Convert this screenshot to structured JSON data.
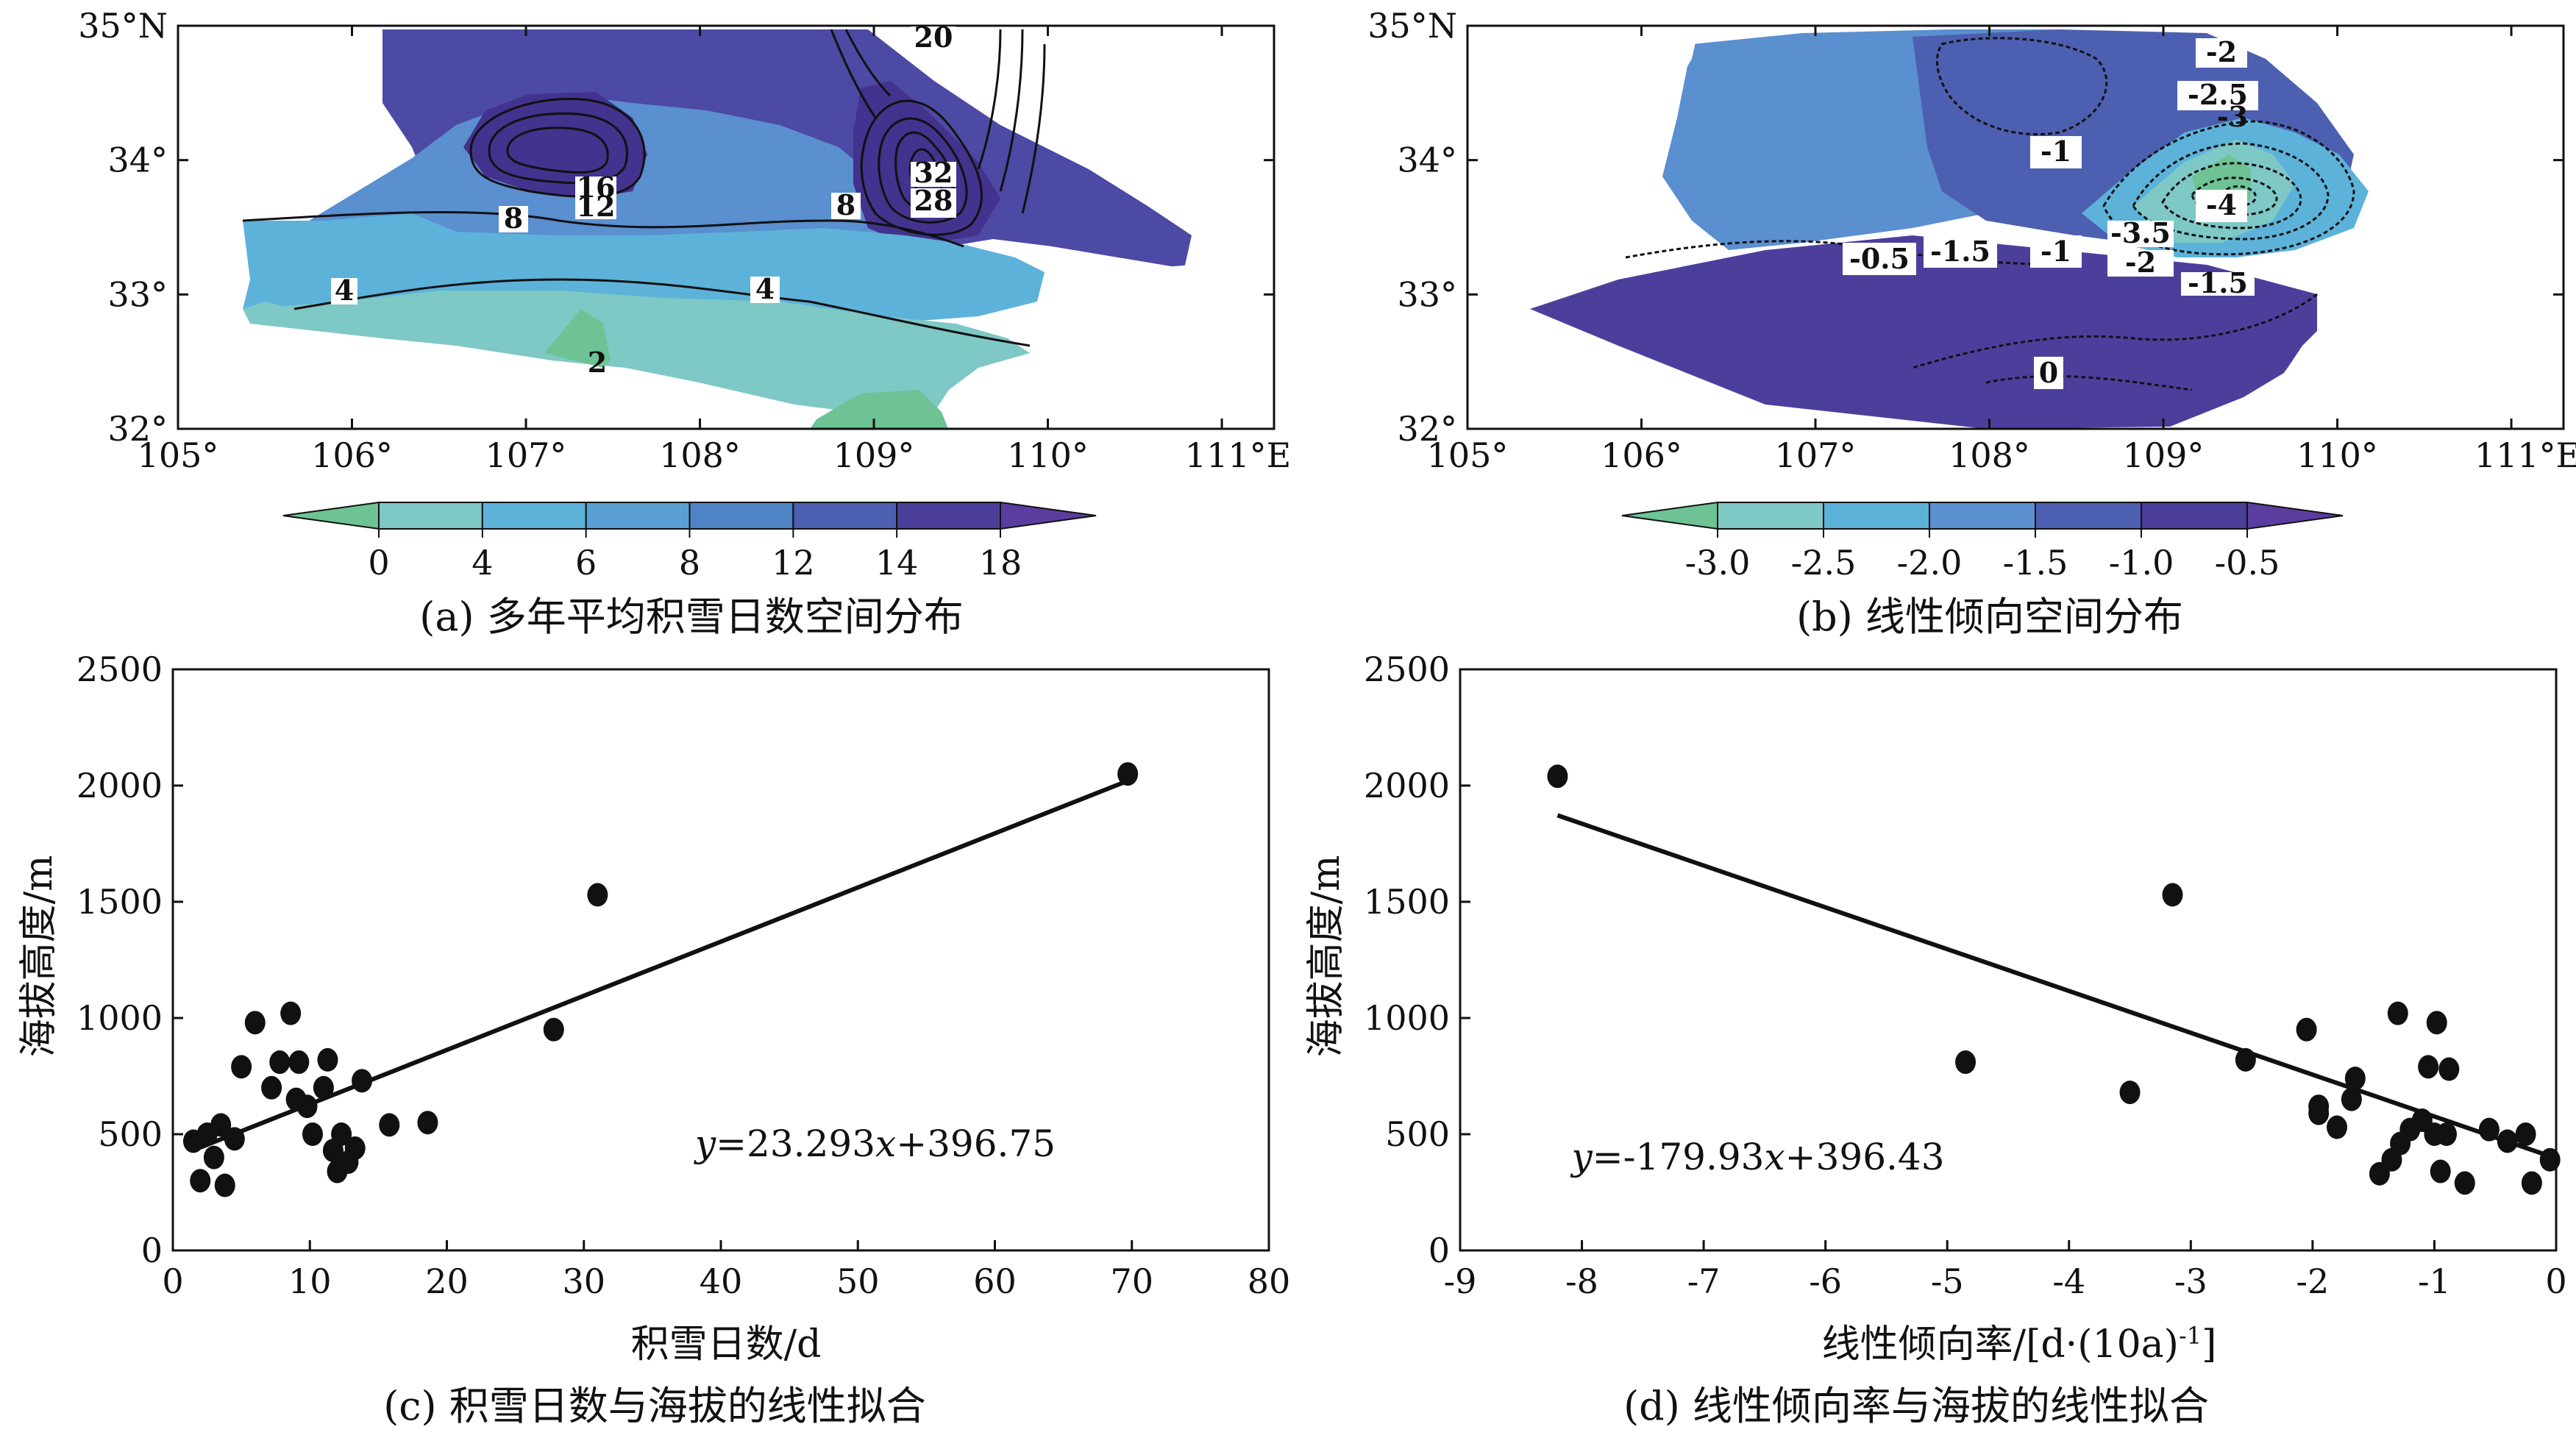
{
  "chart_data": [
    {
      "id": "a",
      "type": "heatmap",
      "caption": "(a) 多年平均积雪日数空间分布",
      "lon_ticks": [
        "105°",
        "106°",
        "107°",
        "108°",
        "109°",
        "110°",
        "111°E"
      ],
      "lat_ticks": [
        "35°N",
        "34°",
        "33°",
        "32°"
      ],
      "lon_range": [
        105,
        111.3
      ],
      "lat_range": [
        32,
        35
      ],
      "colorbar": {
        "labels": [
          "0",
          "4",
          "6",
          "8",
          "12",
          "14",
          "18"
        ],
        "colors": [
          "#6dc394",
          "#7ec8c6",
          "#5db2da",
          "#5a9fd4",
          "#4e84c6",
          "#4d5fb0",
          "#4b3e98",
          "#5b3d9f"
        ]
      },
      "contour_labels": [
        "20",
        "16",
        "12",
        "32",
        "28",
        "8",
        "8",
        "4",
        "4",
        "2"
      ]
    },
    {
      "id": "b",
      "type": "heatmap",
      "caption": "(b) 线性倾向空间分布",
      "lon_ticks": [
        "105°",
        "106°",
        "107°",
        "108°",
        "109°",
        "110°",
        "111°E"
      ],
      "lat_ticks": [
        "35°N",
        "34°",
        "33°",
        "32°"
      ],
      "lon_range": [
        105,
        111.3
      ],
      "lat_range": [
        32,
        35
      ],
      "colorbar": {
        "labels": [
          "-3.0",
          "-2.5",
          "-2.0",
          "-1.5",
          "-1.0",
          "-0.5"
        ],
        "colors": [
          "#6dc394",
          "#7ec8c6",
          "#5db2da",
          "#5a8fd0",
          "#4d5fb0",
          "#4b3e98",
          "#5b3d9f"
        ]
      },
      "contour_labels": [
        "-2",
        "-2.5",
        "-3",
        "-1",
        "-4",
        "-3.5",
        "-0.5",
        "-1.5",
        "-1",
        "-2",
        "-1.5",
        "0"
      ]
    },
    {
      "id": "c",
      "type": "scatter",
      "caption": "(c) 积雪日数与海拔的线性拟合",
      "xlabel": "积雪日数/d",
      "ylabel": "海拔高度/m",
      "xlim": [
        0,
        80
      ],
      "ylim": [
        0,
        2500
      ],
      "xticks": [
        0,
        10,
        20,
        30,
        40,
        50,
        60,
        70,
        80
      ],
      "yticks": [
        0,
        500,
        1000,
        1500,
        2000,
        2500
      ],
      "fit": {
        "slope": 23.293,
        "intercept": 396.75,
        "x_range": [
          2,
          70
        ]
      },
      "equation": {
        "y": "y",
        "eq1": "=23.293",
        "x": "x",
        "eq2": "+396.75"
      },
      "points": [
        [
          1.5,
          470
        ],
        [
          2,
          300
        ],
        [
          2.5,
          500
        ],
        [
          3,
          400
        ],
        [
          3.5,
          540
        ],
        [
          3.8,
          280
        ],
        [
          4.5,
          480
        ],
        [
          5,
          790
        ],
        [
          6,
          980
        ],
        [
          7.2,
          700
        ],
        [
          7.8,
          810
        ],
        [
          8.6,
          1020
        ],
        [
          9,
          650
        ],
        [
          9.2,
          810
        ],
        [
          9.8,
          620
        ],
        [
          10.2,
          500
        ],
        [
          11,
          700
        ],
        [
          11.3,
          820
        ],
        [
          11.7,
          430
        ],
        [
          12,
          340
        ],
        [
          12.3,
          500
        ],
        [
          12.8,
          380
        ],
        [
          13.3,
          440
        ],
        [
          13.8,
          730
        ],
        [
          15.8,
          540
        ],
        [
          18.6,
          550
        ],
        [
          27.8,
          950
        ],
        [
          31,
          1530
        ],
        [
          69.7,
          2050
        ]
      ]
    },
    {
      "id": "d",
      "type": "scatter",
      "caption": "(d) 线性倾向率与海拔的线性拟合",
      "xlabel": "线性倾向率/[d·(10a)",
      "xlabel_sup": "-1",
      "xlabel_end": "]",
      "ylabel": "海拔高度/m",
      "xlim": [
        -9,
        0
      ],
      "ylim": [
        0,
        2500
      ],
      "xticks": [
        -9,
        -8,
        -7,
        -6,
        -5,
        -4,
        -3,
        -2,
        -1,
        0
      ],
      "yticks": [
        0,
        500,
        1000,
        1500,
        2000,
        2500
      ],
      "fit": {
        "slope": -179.93,
        "intercept": 396.43,
        "x_range": [
          -8.2,
          0
        ]
      },
      "equation": {
        "y": "y",
        "eq1": "=-179.93",
        "x": "x",
        "eq2": "+396.43"
      },
      "points": [
        [
          -8.2,
          2040
        ],
        [
          -4.85,
          810
        ],
        [
          -3.5,
          680
        ],
        [
          -3.15,
          1530
        ],
        [
          -2.55,
          820
        ],
        [
          -2.05,
          950
        ],
        [
          -1.95,
          620
        ],
        [
          -1.95,
          590
        ],
        [
          -1.8,
          530
        ],
        [
          -1.68,
          650
        ],
        [
          -1.65,
          740
        ],
        [
          -1.45,
          330
        ],
        [
          -1.35,
          390
        ],
        [
          -1.3,
          1020
        ],
        [
          -1.28,
          460
        ],
        [
          -1.2,
          520
        ],
        [
          -1.1,
          560
        ],
        [
          -1.05,
          790
        ],
        [
          -1.0,
          500
        ],
        [
          -0.98,
          980
        ],
        [
          -0.95,
          340
        ],
        [
          -0.9,
          500
        ],
        [
          -0.88,
          780
        ],
        [
          -0.75,
          290
        ],
        [
          -0.55,
          520
        ],
        [
          -0.4,
          470
        ],
        [
          -0.25,
          500
        ],
        [
          -0.2,
          290
        ],
        [
          -0.05,
          390
        ]
      ]
    }
  ]
}
